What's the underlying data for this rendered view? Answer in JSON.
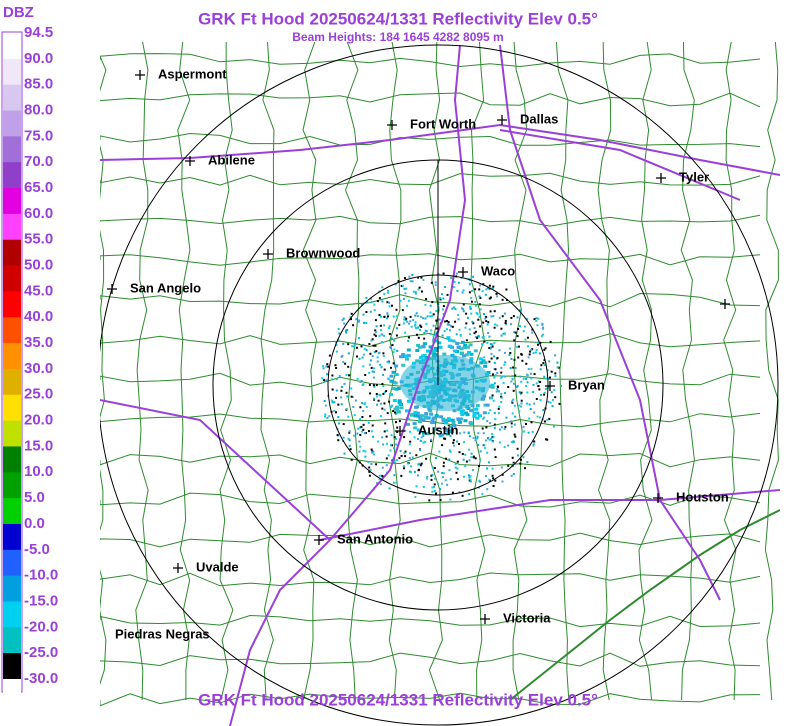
{
  "header": {
    "title": "GRK Ft Hood 20250624/1331 Reflectivity Elev 0.5°",
    "subtitle": "Beam Heights: 184 1645 4282 8095 m"
  },
  "legend": {
    "unit": "DBZ",
    "labels": [
      "94.5",
      "90.0",
      "85.0",
      "80.0",
      "75.0",
      "70.0",
      "65.0",
      "60.0",
      "55.0",
      "50.0",
      "45.0",
      "40.0",
      "35.0",
      "30.0",
      "25.0",
      "20.0",
      "15.0",
      "10.0",
      "5.0",
      "0.0",
      "-5.0",
      "-10.0",
      "-15.0",
      "-20.0",
      "-25.0",
      "-30.0"
    ]
  },
  "map": {
    "cities": [
      "Aspermont",
      "Fort Worth",
      "Dallas",
      "Abilene",
      "Tyler",
      "Brownwood",
      "Waco",
      "San Angelo",
      "Bryan",
      "Austin",
      "Houston",
      "San Antonio",
      "Uvalde",
      "Victoria",
      "Piedras Negras"
    ]
  },
  "footer": {
    "title": "GRK Ft Hood 20250624/1331 Reflectivity Elev 0.5°"
  }
}
